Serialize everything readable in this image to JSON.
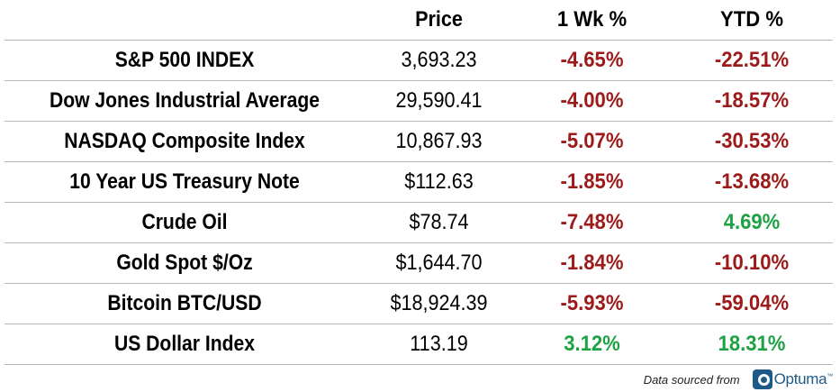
{
  "table": {
    "headers": {
      "name": "",
      "price": "Price",
      "wk": "1 Wk %",
      "ytd": "YTD %"
    },
    "rows": [
      {
        "name": "S&P 500 INDEX",
        "price": "3,693.23",
        "wk": "-4.65%",
        "ytd": "-22.51%"
      },
      {
        "name": "Dow Jones Industrial Average",
        "price": "29,590.41",
        "wk": "-4.00%",
        "ytd": "-18.57%"
      },
      {
        "name": "NASDAQ Composite Index",
        "price": "10,867.93",
        "wk": "-5.07%",
        "ytd": "-30.53%"
      },
      {
        "name": "10 Year US Treasury Note",
        "price": "$112.63",
        "wk": "-1.85%",
        "ytd": "-13.68%"
      },
      {
        "name": "Crude Oil",
        "price": "$78.74",
        "wk": "-7.48%",
        "ytd": "4.69%"
      },
      {
        "name": "Gold Spot $/Oz",
        "price": "$1,644.70",
        "wk": "-1.84%",
        "ytd": "-10.10%"
      },
      {
        "name": "Bitcoin BTC/USD",
        "price": "$18,924.39",
        "wk": "-5.93%",
        "ytd": "-59.04%"
      },
      {
        "name": "US Dollar Index",
        "price": "113.19",
        "wk": "3.12%",
        "ytd": "18.31%"
      }
    ]
  },
  "footer": {
    "source_label": "Data sourced from",
    "logo_text": "Optuma",
    "logo_tm": "™",
    "logo_icon": "optuma-logo-icon"
  },
  "colors": {
    "negative": "#9c1a1a",
    "positive": "#1fa244",
    "brand": "#1d5a87"
  }
}
